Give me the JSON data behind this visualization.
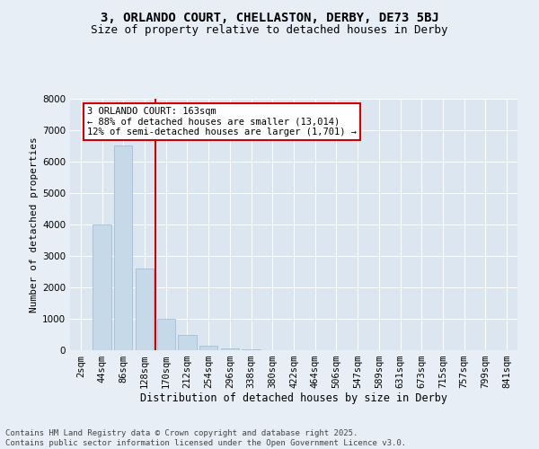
{
  "title1": "3, ORLANDO COURT, CHELLASTON, DERBY, DE73 5BJ",
  "title2": "Size of property relative to detached houses in Derby",
  "xlabel": "Distribution of detached houses by size in Derby",
  "ylabel": "Number of detached properties",
  "categories": [
    "2sqm",
    "44sqm",
    "86sqm",
    "128sqm",
    "170sqm",
    "212sqm",
    "254sqm",
    "296sqm",
    "338sqm",
    "380sqm",
    "422sqm",
    "464sqm",
    "506sqm",
    "547sqm",
    "589sqm",
    "631sqm",
    "673sqm",
    "715sqm",
    "757sqm",
    "799sqm",
    "841sqm"
  ],
  "values": [
    0,
    4000,
    6500,
    2600,
    1000,
    500,
    150,
    50,
    20,
    5,
    2,
    1,
    0,
    0,
    0,
    0,
    0,
    0,
    0,
    0,
    0
  ],
  "bar_color": "#c6d9e8",
  "bar_edge_color": "#9ab8d0",
  "vline_index": 3.5,
  "vline_color": "#cc0000",
  "annotation_text": "3 ORLANDO COURT: 163sqm\n← 88% of detached houses are smaller (13,014)\n12% of semi-detached houses are larger (1,701) →",
  "annotation_box_edgecolor": "#cc0000",
  "ylim": [
    0,
    8000
  ],
  "yticks": [
    0,
    1000,
    2000,
    3000,
    4000,
    5000,
    6000,
    7000,
    8000
  ],
  "bg_color": "#e8eef5",
  "plot_bg_color": "#dce6f0",
  "grid_color": "#ffffff",
  "footer": "Contains HM Land Registry data © Crown copyright and database right 2025.\nContains public sector information licensed under the Open Government Licence v3.0.",
  "title1_fontsize": 10,
  "title2_fontsize": 9,
  "xlabel_fontsize": 8.5,
  "ylabel_fontsize": 8,
  "tick_fontsize": 7.5,
  "annotation_fontsize": 7.5,
  "footer_fontsize": 6.5
}
